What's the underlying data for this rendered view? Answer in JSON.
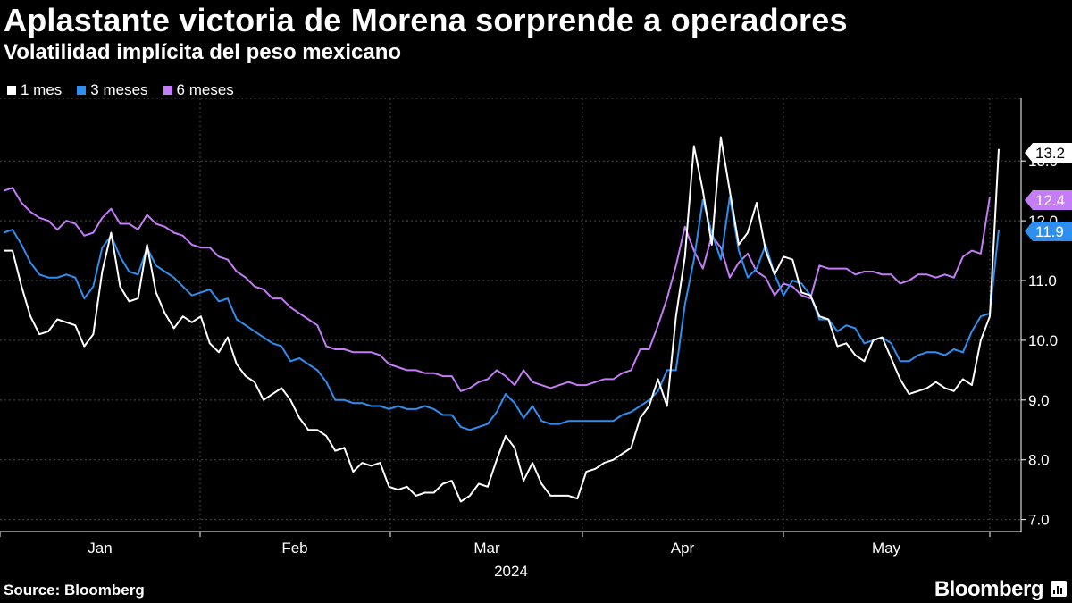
{
  "header": {
    "title": "Aplastante victoria de Morena sorprende a operadores",
    "subtitle": "Volatilidad implícita del peso mexicano"
  },
  "legend": [
    {
      "label": "1 mes",
      "color": "#ffffff"
    },
    {
      "label": "3 meses",
      "color": "#2f8ff0"
    },
    {
      "label": "6 meses",
      "color": "#c47cf7"
    }
  ],
  "footer": {
    "source": "Source: Bloomberg",
    "brand": "Bloomberg"
  },
  "chart_data": {
    "type": "line",
    "title": "Volatilidad implícita del peso mexicano",
    "xlabel": "2024",
    "ylabel": "",
    "ylim": [
      6.8,
      13.9
    ],
    "y_ticks": [
      "7.0",
      "8.0",
      "9.0",
      "10.0",
      "11.0",
      "12.0",
      "13.0"
    ],
    "x_ticks": [
      "Jan",
      "Feb",
      "Mar",
      "Apr",
      "May"
    ],
    "x_year_label": "2024",
    "grid": true,
    "n_points": 112,
    "end_labels": [
      {
        "series": "1 mes",
        "text": "13.2"
      },
      {
        "series": "6 meses",
        "text": "12.4"
      },
      {
        "series": "3 meses",
        "text": "11.9"
      }
    ],
    "series": [
      {
        "name": "1 mes",
        "color": "#ffffff",
        "values": [
          11.5,
          11.5,
          10.9,
          10.4,
          10.1,
          10.15,
          10.35,
          10.3,
          10.25,
          9.9,
          10.1,
          11.15,
          11.8,
          10.9,
          10.65,
          10.7,
          11.6,
          10.8,
          10.45,
          10.2,
          10.4,
          10.3,
          10.4,
          9.95,
          9.8,
          10.05,
          9.6,
          9.4,
          9.3,
          9.0,
          9.1,
          9.2,
          9.0,
          8.7,
          8.5,
          8.5,
          8.4,
          8.15,
          8.2,
          7.8,
          7.95,
          7.9,
          7.95,
          7.55,
          7.5,
          7.55,
          7.4,
          7.45,
          7.45,
          7.6,
          7.65,
          7.3,
          7.4,
          7.6,
          7.55,
          8.0,
          8.4,
          8.2,
          7.65,
          7.95,
          7.6,
          7.4,
          7.4,
          7.4,
          7.35,
          7.8,
          7.85,
          7.95,
          8.0,
          8.1,
          8.2,
          8.7,
          8.9,
          9.35,
          8.9,
          10.4,
          11.4,
          13.25,
          12.5,
          11.6,
          13.4,
          12.5,
          11.6,
          11.8,
          12.3,
          11.5,
          11.1,
          11.4,
          11.35,
          10.8,
          10.75,
          10.4,
          10.35,
          9.9,
          9.95,
          9.75,
          9.65,
          10.0,
          10.05,
          9.7,
          9.35,
          9.1,
          9.15,
          9.2,
          9.3,
          9.2,
          9.15,
          9.35,
          9.25,
          10.0,
          10.4,
          13.2
        ]
      },
      {
        "name": "3 meses",
        "color": "#2f8ff0",
        "values": [
          11.8,
          11.85,
          11.6,
          11.3,
          11.1,
          11.05,
          11.05,
          11.1,
          11.05,
          10.7,
          10.9,
          11.55,
          11.75,
          11.4,
          11.15,
          11.1,
          11.55,
          11.25,
          11.15,
          11.05,
          10.9,
          10.75,
          10.8,
          10.85,
          10.65,
          10.7,
          10.35,
          10.25,
          10.15,
          10.05,
          9.95,
          9.9,
          9.65,
          9.7,
          9.6,
          9.5,
          9.3,
          9.0,
          9.0,
          8.95,
          8.95,
          8.9,
          8.9,
          8.85,
          8.9,
          8.85,
          8.85,
          8.9,
          8.85,
          8.75,
          8.75,
          8.55,
          8.5,
          8.55,
          8.6,
          8.8,
          9.1,
          8.95,
          8.7,
          8.9,
          8.65,
          8.6,
          8.6,
          8.65,
          8.65,
          8.65,
          8.65,
          8.65,
          8.65,
          8.75,
          8.8,
          8.9,
          9.0,
          9.15,
          9.5,
          9.5,
          10.6,
          11.35,
          12.35,
          11.8,
          11.35,
          12.4,
          11.5,
          11.05,
          11.2,
          11.6,
          11.1,
          10.75,
          11.0,
          10.95,
          10.75,
          10.35,
          10.35,
          10.15,
          10.25,
          10.2,
          9.95,
          10.0,
          10.05,
          9.95,
          9.65,
          9.65,
          9.75,
          9.8,
          9.8,
          9.75,
          9.85,
          9.8,
          10.15,
          10.4,
          10.45,
          11.85
        ]
      },
      {
        "name": "6 meses",
        "color": "#c47cf7",
        "values": [
          12.5,
          12.55,
          12.3,
          12.15,
          12.05,
          12.0,
          11.85,
          12.0,
          11.95,
          11.75,
          11.8,
          12.05,
          12.2,
          11.95,
          11.95,
          11.85,
          12.1,
          11.95,
          11.9,
          11.8,
          11.75,
          11.6,
          11.55,
          11.55,
          11.4,
          11.35,
          11.15,
          11.05,
          10.9,
          10.85,
          10.7,
          10.7,
          10.55,
          10.45,
          10.35,
          10.25,
          9.9,
          9.85,
          9.85,
          9.8,
          9.8,
          9.8,
          9.75,
          9.6,
          9.55,
          9.5,
          9.5,
          9.45,
          9.45,
          9.4,
          9.4,
          9.15,
          9.2,
          9.3,
          9.35,
          9.5,
          9.4,
          9.25,
          9.5,
          9.3,
          9.25,
          9.2,
          9.25,
          9.3,
          9.25,
          9.25,
          9.3,
          9.35,
          9.35,
          9.45,
          9.5,
          9.85,
          9.85,
          10.25,
          10.7,
          11.25,
          11.9,
          11.5,
          11.2,
          11.75,
          11.55,
          11.05,
          11.3,
          11.45,
          11.15,
          11.05,
          10.75,
          10.95,
          10.9,
          10.75,
          10.7,
          11.25,
          11.2,
          11.2,
          11.2,
          11.1,
          11.15,
          11.15,
          11.1,
          11.1,
          10.95,
          11.0,
          11.1,
          11.1,
          11.05,
          11.1,
          11.05,
          11.4,
          11.5,
          11.45,
          12.4
        ]
      }
    ]
  }
}
